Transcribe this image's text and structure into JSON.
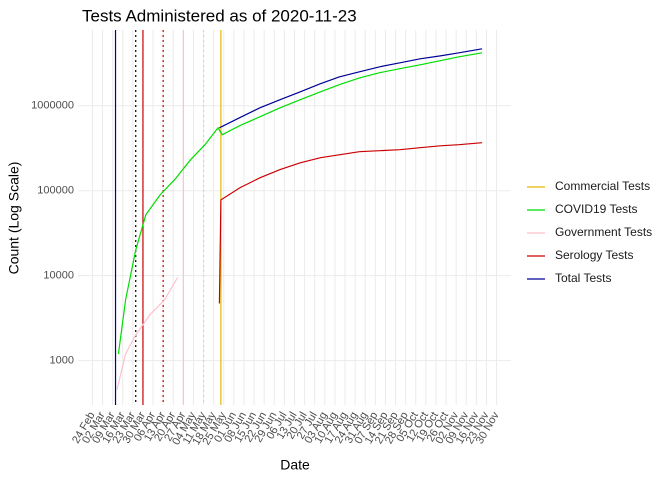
{
  "chart_data": {
    "type": "line",
    "title": "Tests Administered as of 2020-11-23",
    "x_label": "Date",
    "y_label": "Count (Log Scale)",
    "log_y": true,
    "grid": true,
    "legend": "right",
    "xlim": [
      -10,
      290
    ],
    "ylim": [
      300,
      7800000
    ],
    "yticks": [
      1000,
      10000,
      100000,
      1000000
    ],
    "xticks": [
      {
        "value": 0,
        "label": "24 Feb"
      },
      {
        "value": 7,
        "label": "02 Mar"
      },
      {
        "value": 14,
        "label": "09 Mar"
      },
      {
        "value": 21,
        "label": "16 Mar"
      },
      {
        "value": 28,
        "label": "23 Mar"
      },
      {
        "value": 35,
        "label": "30 Mar"
      },
      {
        "value": 42,
        "label": "06 Apr"
      },
      {
        "value": 49,
        "label": "13 Apr"
      },
      {
        "value": 56,
        "label": "20 Apr"
      },
      {
        "value": 63,
        "label": "27 Apr"
      },
      {
        "value": 70,
        "label": "04 May"
      },
      {
        "value": 77,
        "label": "11 May"
      },
      {
        "value": 84,
        "label": "18 May"
      },
      {
        "value": 91,
        "label": "25 May"
      },
      {
        "value": 98,
        "label": "01 Jun"
      },
      {
        "value": 105,
        "label": "08 Jun"
      },
      {
        "value": 112,
        "label": "15 Jun"
      },
      {
        "value": 119,
        "label": "22 Jun"
      },
      {
        "value": 126,
        "label": "29 Jun"
      },
      {
        "value": 133,
        "label": "06 Jul"
      },
      {
        "value": 140,
        "label": "13 Jul"
      },
      {
        "value": 147,
        "label": "20 Jul"
      },
      {
        "value": 154,
        "label": "27 Jul"
      },
      {
        "value": 161,
        "label": "03 Aug"
      },
      {
        "value": 168,
        "label": "10 Aug"
      },
      {
        "value": 175,
        "label": "17 Aug"
      },
      {
        "value": 182,
        "label": "24 Aug"
      },
      {
        "value": 189,
        "label": "31 Aug"
      },
      {
        "value": 196,
        "label": "07 Sep"
      },
      {
        "value": 203,
        "label": "14 Sep"
      },
      {
        "value": 210,
        "label": "21 Sep"
      },
      {
        "value": 217,
        "label": "28 Sep"
      },
      {
        "value": 224,
        "label": "05 Oct"
      },
      {
        "value": 231,
        "label": "12 Oct"
      },
      {
        "value": 238,
        "label": "19 Oct"
      },
      {
        "value": 245,
        "label": "26 Oct"
      },
      {
        "value": 252,
        "label": "02 Nov"
      },
      {
        "value": 259,
        "label": "09 Nov"
      },
      {
        "value": 266,
        "label": "16 Nov"
      },
      {
        "value": 273,
        "label": "23 Nov"
      },
      {
        "value": 280,
        "label": "30 Nov"
      }
    ],
    "vlines": [
      {
        "x": 16,
        "color": "#000099",
        "dashed": false
      },
      {
        "x": 30,
        "color": "#000000",
        "dashed": true
      },
      {
        "x": 35,
        "color": "#cc0000",
        "dashed": false
      },
      {
        "x": 49,
        "color": "#cc0000",
        "dashed": true
      },
      {
        "x": 63,
        "color": "#ffc0cb",
        "dashed": false
      },
      {
        "x": 77,
        "color": "#ffc0cb",
        "dashed": true
      },
      {
        "x": 89,
        "color": "#e6b800",
        "dashed": false
      }
    ],
    "series": [
      {
        "name": "Commercial Tests",
        "color": "#e6b800",
        "x": [],
        "values": []
      },
      {
        "name": "COVID19 Tests",
        "color": "#00dd00",
        "x": [
          18,
          23,
          30,
          37,
          47,
          57,
          68,
          78,
          87,
          90,
          102,
          116,
          130,
          144,
          158,
          171,
          185,
          199,
          213,
          227,
          241,
          254,
          270
        ],
        "values": [
          1200,
          5200,
          20000,
          52000,
          90000,
          135000,
          232000,
          348000,
          551000,
          456000,
          582000,
          742000,
          947000,
          1180000,
          1460000,
          1770000,
          2130000,
          2450000,
          2730000,
          3040000,
          3390000,
          3770000,
          4200000
        ]
      },
      {
        "name": "Government Tests",
        "color": "#ffc0cb",
        "x": [
          17,
          23,
          30,
          40,
          50,
          59
        ],
        "values": [
          456,
          1200,
          2000,
          3500,
          5200,
          9500
        ]
      },
      {
        "name": "Serology Tests",
        "color": "#cc0000",
        "x": [
          88,
          89,
          102,
          116,
          130,
          144,
          158,
          171,
          185,
          199,
          213,
          227,
          241,
          254,
          270
        ],
        "values": [
          4700,
          78000,
          108000,
          142000,
          177000,
          213000,
          245000,
          265000,
          288000,
          296000,
          304000,
          321000,
          338000,
          348000,
          367000
        ]
      },
      {
        "name": "Total Tests",
        "color": "#000099",
        "x": [
          88,
          102,
          116,
          130,
          144,
          158,
          171,
          185,
          199,
          213,
          227,
          241,
          254,
          270
        ],
        "values": [
          551000,
          723000,
          947000,
          1180000,
          1460000,
          1820000,
          2190000,
          2510000,
          2880000,
          3210000,
          3570000,
          3870000,
          4200000,
          4690000
        ]
      }
    ]
  }
}
